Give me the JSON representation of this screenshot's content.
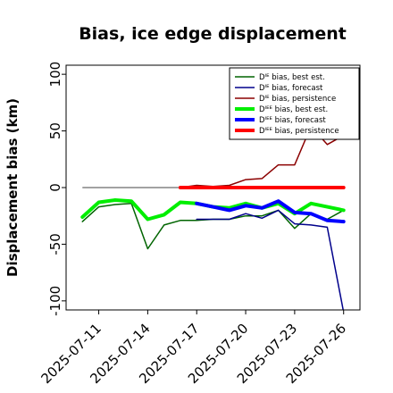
{
  "chart_data": {
    "type": "line",
    "title": "Bias, ice edge displacement",
    "xlabel": "",
    "ylabel": "Displacement bias (km)",
    "xlim": [
      "2025-07-09",
      "2025-07-27"
    ],
    "ylim": [
      -108,
      108
    ],
    "yticks": [
      100,
      50,
      0,
      -50,
      -100
    ],
    "xticks": [
      "2025-07-11",
      "2025-07-14",
      "2025-07-17",
      "2025-07-20",
      "2025-07-23",
      "2025-07-26"
    ],
    "xtick_colors": [
      "#000000",
      "#000000",
      "#228b22",
      "#000000",
      "#000000",
      "#000000"
    ],
    "grid": false,
    "legend_position": "top-right",
    "zero_line_color": "#444444",
    "zero_line_range": [
      "2025-07-10",
      "2025-07-26"
    ],
    "series": [
      {
        "name": "Dᴵᴱ bias, best est.",
        "color": "#006400",
        "width": 1.5,
        "x": [
          "2025-07-10",
          "2025-07-11",
          "2025-07-12",
          "2025-07-13",
          "2025-07-14",
          "2025-07-15",
          "2025-07-16",
          "2025-07-17",
          "2025-07-18",
          "2025-07-19",
          "2025-07-20",
          "2025-07-21",
          "2025-07-22",
          "2025-07-23",
          "2025-07-24",
          "2025-07-25",
          "2025-07-26"
        ],
        "values": [
          -30,
          -17,
          -15,
          -14,
          -54,
          -33,
          -29,
          -29,
          -28,
          -28,
          -25,
          -25,
          -20,
          -36,
          -23,
          -28,
          -20
        ]
      },
      {
        "name": "Dᴵᴱ bias, forecast",
        "color": "#00008b",
        "width": 1.5,
        "x": [
          "2025-07-17",
          "2025-07-18",
          "2025-07-19",
          "2025-07-20",
          "2025-07-21",
          "2025-07-22",
          "2025-07-23",
          "2025-07-24",
          "2025-07-25",
          "2025-07-26"
        ],
        "values": [
          -28,
          -28,
          -28,
          -23,
          -27,
          -20,
          -32,
          -33,
          -35,
          -110
        ]
      },
      {
        "name": "Dᴵᴱ bias, persistence",
        "color": "#8b0000",
        "width": 1.5,
        "x": [
          "2025-07-16",
          "2025-07-17",
          "2025-07-18",
          "2025-07-19",
          "2025-07-20",
          "2025-07-21",
          "2025-07-22",
          "2025-07-23",
          "2025-07-24",
          "2025-07-25",
          "2025-07-26"
        ],
        "values": [
          0,
          2,
          1,
          2,
          7,
          8,
          20,
          20,
          54,
          38,
          46
        ]
      },
      {
        "name": "Dᴵᴱᴱ bias, best est.",
        "color": "#00ee00",
        "width": 4,
        "x": [
          "2025-07-10",
          "2025-07-11",
          "2025-07-12",
          "2025-07-13",
          "2025-07-14",
          "2025-07-15",
          "2025-07-16",
          "2025-07-17",
          "2025-07-18",
          "2025-07-19",
          "2025-07-20",
          "2025-07-21",
          "2025-07-22",
          "2025-07-23",
          "2025-07-24",
          "2025-07-25",
          "2025-07-26"
        ],
        "values": [
          -26,
          -13,
          -11,
          -12,
          -28,
          -24,
          -13,
          -14,
          -17,
          -18,
          -14,
          -18,
          -14,
          -23,
          -14,
          -17,
          -20
        ]
      },
      {
        "name": "Dᴵᴱᴱ bias, forecast",
        "color": "#0000ff",
        "width": 4,
        "x": [
          "2025-07-17",
          "2025-07-18",
          "2025-07-19",
          "2025-07-20",
          "2025-07-21",
          "2025-07-22",
          "2025-07-23",
          "2025-07-24",
          "2025-07-25",
          "2025-07-26"
        ],
        "values": [
          -14,
          -17,
          -20,
          -16,
          -18,
          -12,
          -22,
          -23,
          -29,
          -30
        ]
      },
      {
        "name": "Dᴵᴱᴱ bias, persistence",
        "color": "#ff0000",
        "width": 4,
        "x": [
          "2025-07-16",
          "2025-07-17",
          "2025-07-18",
          "2025-07-19",
          "2025-07-20",
          "2025-07-21",
          "2025-07-22",
          "2025-07-23",
          "2025-07-24",
          "2025-07-25",
          "2025-07-26"
        ],
        "values": [
          0,
          0,
          0,
          0,
          0,
          0,
          0,
          0,
          0,
          0,
          0
        ]
      }
    ]
  }
}
